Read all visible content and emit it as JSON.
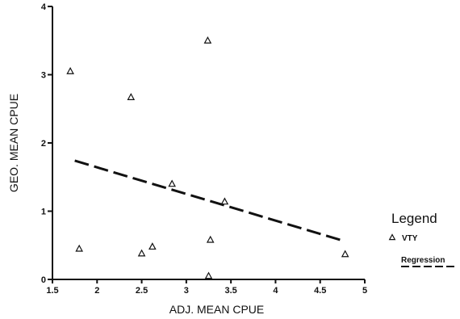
{
  "chart_data": {
    "type": "scatter",
    "xlabel": "ADJ. MEAN CPUE",
    "ylabel": "GEO. MEAN CPUE",
    "xlim": [
      1.5,
      5
    ],
    "ylim": [
      0,
      4
    ],
    "xticks": [
      "1.5",
      "2",
      "2.5",
      "3",
      "3.5",
      "4",
      "4.5",
      "5"
    ],
    "yticks": [
      "0",
      "1",
      "2",
      "3",
      "4"
    ],
    "series": [
      {
        "name": "VTY",
        "marker": "triangle",
        "points": [
          {
            "x": 1.7,
            "y": 3.05
          },
          {
            "x": 1.8,
            "y": 0.45
          },
          {
            "x": 2.38,
            "y": 2.67
          },
          {
            "x": 2.5,
            "y": 0.38
          },
          {
            "x": 2.62,
            "y": 0.48
          },
          {
            "x": 2.84,
            "y": 1.4
          },
          {
            "x": 3.24,
            "y": 3.5
          },
          {
            "x": 3.27,
            "y": 0.58
          },
          {
            "x": 3.25,
            "y": 0.05
          },
          {
            "x": 3.43,
            "y": 1.14
          },
          {
            "x": 4.78,
            "y": 0.37
          }
        ]
      }
    ],
    "regression": {
      "name": "Regression",
      "style": "dashed",
      "from": {
        "x": 1.75,
        "y": 1.74
      },
      "to": {
        "x": 4.75,
        "y": 0.57
      }
    },
    "legend": {
      "title": "Legend",
      "placement": "right"
    },
    "grid": false
  }
}
